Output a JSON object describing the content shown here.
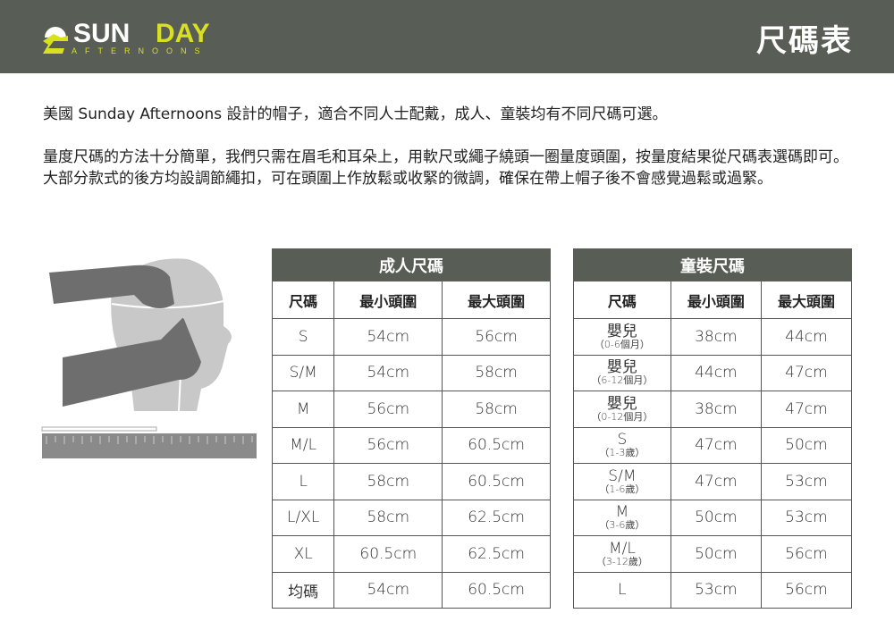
{
  "header": {
    "logo_text": "SUNDAY",
    "logo_subtext": "AFTERNOONS",
    "title": "尺碼表",
    "bg_color": "#585d56",
    "accent_color": "#d9e021"
  },
  "intro": {
    "p1": "美國 Sunday Afternoons 設計的帽子，適合不同人士配戴，成人、童裝均有不同尺碼可選。",
    "p2": "量度尺碼的方法十分簡單，我們只需在眉毛和耳朵上，用軟尺或繩子繞頭一圈量度頭圍，按量度結果從尺碼表選碼即可。大部分款式的後方均設調節繩扣，可在頭圍上作放鬆或收緊的微調，確保在帶上帽子後不會感覺過鬆或過緊。"
  },
  "adult": {
    "caption": "成人尺碼",
    "headers": [
      "尺碼",
      "最小頭圍",
      "最大頭圍"
    ],
    "rows": [
      [
        "S",
        "54cm",
        "56cm"
      ],
      [
        "S/M",
        "54cm",
        "58cm"
      ],
      [
        "M",
        "56cm",
        "58cm"
      ],
      [
        "M/L",
        "56cm",
        "60.5cm"
      ],
      [
        "L",
        "58cm",
        "60.5cm"
      ],
      [
        "L/XL",
        "58cm",
        "62.5cm"
      ],
      [
        "XL",
        "60.5cm",
        "62.5cm"
      ],
      [
        "均碼",
        "54cm",
        "60.5cm"
      ]
    ]
  },
  "kids": {
    "caption": "童裝尺碼",
    "headers": [
      "尺碼",
      "最小頭圍",
      "最大頭圍"
    ],
    "rows": [
      [
        "嬰兒",
        "（0-6個月）",
        "38cm",
        "44cm"
      ],
      [
        "嬰兒",
        "（6-12個月）",
        "44cm",
        "47cm"
      ],
      [
        "嬰兒",
        "（0-12個月）",
        "38cm",
        "47cm"
      ],
      [
        "S",
        "（1-3歲）",
        "47cm",
        "50cm"
      ],
      [
        "S/M",
        "（1-6歲）",
        "47cm",
        "53cm"
      ],
      [
        "M",
        "（3-6歲）",
        "50cm",
        "53cm"
      ],
      [
        "M/L",
        "（3-12歲）",
        "50cm",
        "56cm"
      ],
      [
        "L",
        "",
        "53cm",
        "56cm"
      ]
    ]
  }
}
